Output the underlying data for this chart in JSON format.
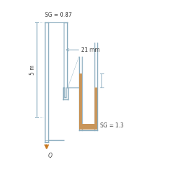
{
  "bg_color": "#ffffff",
  "pipe_color": "#8aacbe",
  "fluid_color": "#c8955a",
  "arrow_color": "#c87820",
  "dim_color": "#8aacbe",
  "text_color": "#444444",
  "sg_oil": "SG = 0.87",
  "sg_manometer": "SG = 1.3",
  "dim_21mm": "21 mm",
  "dim_5m": "5 m",
  "Q_label": "Q"
}
